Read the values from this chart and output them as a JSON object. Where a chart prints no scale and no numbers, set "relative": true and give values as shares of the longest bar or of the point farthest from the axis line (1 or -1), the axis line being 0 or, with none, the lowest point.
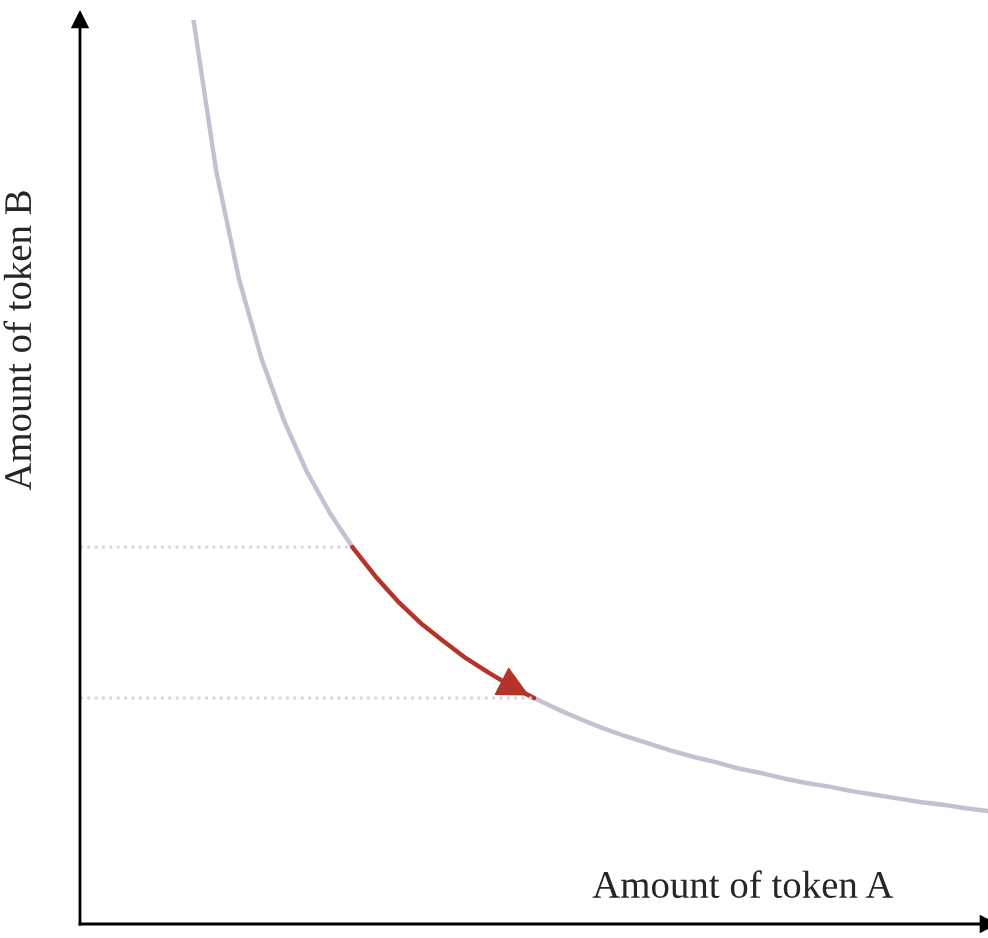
{
  "chart_data": {
    "type": "line",
    "relative": true,
    "xlabel": "Amount of token A",
    "ylabel": "Amount of token B",
    "categories": [
      null,
      null,
      null,
      null,
      null,
      null,
      null,
      null,
      null,
      null,
      null,
      null,
      null,
      null,
      null,
      null,
      null,
      null,
      null,
      null,
      null,
      null,
      null,
      null,
      null,
      null,
      null,
      null,
      null,
      null,
      null,
      null,
      null,
      null,
      null,
      null,
      null,
      null,
      null,
      null,
      null
    ],
    "series": [
      {
        "color": "#c4c0d2",
        "values": [
          null,
          null,
          null,
          null,
          null,
          1.0,
          0.833,
          0.714,
          0.625,
          0.556,
          0.5,
          0.455,
          0.417,
          null,
          null,
          null,
          null,
          null,
          null,
          null,
          0.25,
          0.238,
          0.227,
          0.217,
          0.208,
          0.2,
          0.192,
          0.185,
          0.179,
          0.172,
          0.167,
          0.161,
          0.156,
          0.152,
          0.147,
          0.143,
          0.139,
          0.135,
          0.132,
          0.128,
          0.125
        ]
      },
      {
        "color": "#b5332a",
        "values": [
          null,
          null,
          null,
          null,
          null,
          null,
          null,
          null,
          null,
          null,
          null,
          null,
          0.417,
          0.385,
          0.357,
          0.333,
          0.313,
          0.294,
          0.278,
          0.263,
          0.25,
          null,
          null,
          null,
          null,
          null,
          null,
          null,
          null,
          null,
          null,
          null,
          null,
          null,
          null,
          null,
          null,
          null,
          null,
          null,
          null
        ]
      },
      {
        "color": "#d4d4d4",
        "line_style": "dotted",
        "values": [
          0.417,
          0.417,
          0.417,
          0.417,
          0.417,
          0.417,
          0.417,
          0.417,
          0.417,
          0.417,
          0.417,
          0.417,
          0.417,
          null,
          null,
          null,
          null,
          null,
          null,
          null,
          null,
          null,
          null,
          null,
          null,
          null,
          null,
          null,
          null,
          null,
          null,
          null,
          null,
          null,
          null,
          null,
          null,
          null,
          null,
          null,
          null
        ]
      },
      {
        "color": "#d4d4d4",
        "line_style": "dotted",
        "values": [
          0.25,
          0.25,
          0.25,
          0.25,
          0.25,
          0.25,
          0.25,
          0.25,
          0.25,
          0.25,
          0.25,
          0.25,
          0.25,
          0.25,
          0.25,
          0.25,
          0.25,
          0.25,
          0.25,
          0.25,
          0.25,
          null,
          null,
          null,
          null,
          null,
          null,
          null,
          null,
          null,
          null,
          null,
          null,
          null,
          null,
          null,
          null,
          null,
          null,
          null,
          null
        ]
      }
    ]
  }
}
